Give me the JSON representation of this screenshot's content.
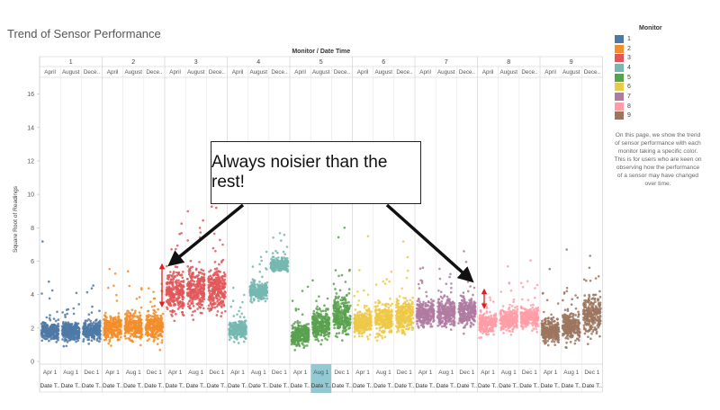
{
  "chart_data": {
    "type": "scatter",
    "title": "Trend of Sensor Performance",
    "column_header": "Monitor / Date Time",
    "monitors": [
      "1",
      "2",
      "3",
      "4",
      "5",
      "6",
      "7",
      "8",
      "9"
    ],
    "month_headers": [
      "April",
      "August",
      "Dece.."
    ],
    "bottom_dates": [
      "Apr 1",
      "Aug 1",
      "Dec 1"
    ],
    "bottom_subheader": "Date T..",
    "highlighted_cell": {
      "monitor": "5",
      "period": 1,
      "color": "#7fbfca"
    },
    "ylabel": "Square Root of Readings",
    "ylim": [
      0,
      17
    ],
    "yticks": [
      0,
      2,
      4,
      6,
      8,
      10,
      12,
      14,
      16
    ],
    "grid": false,
    "legend_position": "right",
    "series": [
      {
        "name": "1",
        "color": "#4e79a7",
        "bands": [
          [
            1.8,
            0.35
          ],
          [
            1.8,
            0.35
          ],
          [
            1.8,
            0.35
          ]
        ],
        "spread": 0.55
      },
      {
        "name": "2",
        "color": "#f28e2b",
        "bands": [
          [
            2.0,
            0.5
          ],
          [
            2.1,
            0.5
          ],
          [
            2.1,
            0.5
          ]
        ],
        "spread": 0.65
      },
      {
        "name": "3",
        "color": "#e15759",
        "bands": [
          [
            4.2,
            0.75
          ],
          [
            4.3,
            0.8
          ],
          [
            4.3,
            0.8
          ]
        ],
        "spread": 1.0
      },
      {
        "name": "4",
        "color": "#76b7b2",
        "bands": [
          [
            1.9,
            0.4
          ],
          [
            4.2,
            0.3
          ],
          [
            5.8,
            0.25
          ]
        ],
        "spread": 0.55
      },
      {
        "name": "5",
        "color": "#59a14f",
        "bands": [
          [
            1.6,
            0.4
          ],
          [
            2.2,
            0.55
          ],
          [
            2.8,
            0.75
          ]
        ],
        "spread": 0.7
      },
      {
        "name": "6",
        "color": "#edc948",
        "bands": [
          [
            2.3,
            0.45
          ],
          [
            2.5,
            0.55
          ],
          [
            2.7,
            0.6
          ]
        ],
        "spread": 0.7
      },
      {
        "name": "7",
        "color": "#b07aa1",
        "bands": [
          [
            2.9,
            0.5
          ],
          [
            2.9,
            0.55
          ],
          [
            2.9,
            0.55
          ]
        ],
        "spread": 0.7
      },
      {
        "name": "8",
        "color": "#ff9da7",
        "bands": [
          [
            2.3,
            0.35
          ],
          [
            2.5,
            0.4
          ],
          [
            2.6,
            0.4
          ]
        ],
        "spread": 0.55
      },
      {
        "name": "9",
        "color": "#9c755f",
        "bands": [
          [
            1.8,
            0.45
          ],
          [
            2.1,
            0.55
          ],
          [
            2.8,
            0.75
          ]
        ],
        "spread": 0.7
      }
    ]
  },
  "legend": {
    "title": "Monitor",
    "items": [
      {
        "label": "1",
        "color": "#4e79a7"
      },
      {
        "label": "2",
        "color": "#f28e2b"
      },
      {
        "label": "3",
        "color": "#e15759"
      },
      {
        "label": "4",
        "color": "#76b7b2"
      },
      {
        "label": "5",
        "color": "#59a14f"
      },
      {
        "label": "6",
        "color": "#edc948"
      },
      {
        "label": "7",
        "color": "#b07aa1"
      },
      {
        "label": "8",
        "color": "#ff9da7"
      },
      {
        "label": "9",
        "color": "#9c755f"
      }
    ]
  },
  "note": "On this page, we show the trend of sensor performance with each monitor taking a specific color. This is for users who are keen on observing how the performance of a sensor may have changed over time.",
  "callout": {
    "text": "Always noisier than the rest!",
    "arrow_color": "#111111",
    "range_marker_color": "#e02020"
  }
}
